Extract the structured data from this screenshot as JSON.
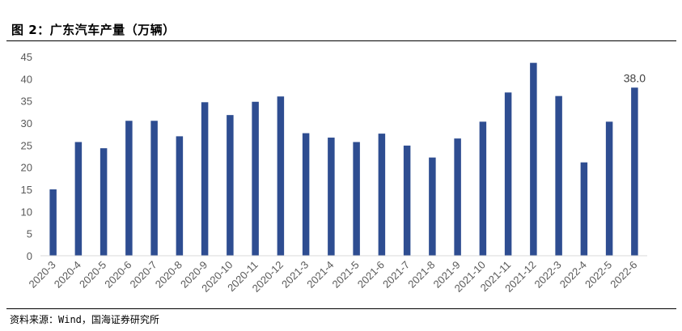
{
  "figure": {
    "title": "图 2：广东汽车产量（万辆）",
    "source": "资料来源：Wind，国海证券研究所"
  },
  "chart_data": {
    "type": "bar",
    "title": "广东汽车产量（万辆）",
    "xlabel": "",
    "ylabel": "",
    "ylim": [
      0,
      45
    ],
    "yticks": [
      0,
      5,
      10,
      15,
      20,
      25,
      30,
      35,
      40,
      45
    ],
    "grid": false,
    "legend": "none",
    "bar_color": "#2E4D91",
    "categories": [
      "2020-3",
      "2020-4",
      "2020-5",
      "2020-6",
      "2020-7",
      "2020-8",
      "2020-9",
      "2020-10",
      "2020-11",
      "2020-12",
      "2021-3",
      "2021-4",
      "2021-5",
      "2021-6",
      "2021-7",
      "2021-8",
      "2021-9",
      "2021-10",
      "2021-11",
      "2021-12",
      "2022-3",
      "2022-4",
      "2022-5",
      "2022-6"
    ],
    "values": [
      15.0,
      25.7,
      24.3,
      30.5,
      30.5,
      27.0,
      34.7,
      31.8,
      34.8,
      36.0,
      27.7,
      26.7,
      25.7,
      27.6,
      24.9,
      22.2,
      26.5,
      30.3,
      36.9,
      43.6,
      36.1,
      21.1,
      30.3,
      38.0
    ],
    "data_labels": [
      {
        "category": "2022-6",
        "text": "38.0"
      }
    ]
  }
}
